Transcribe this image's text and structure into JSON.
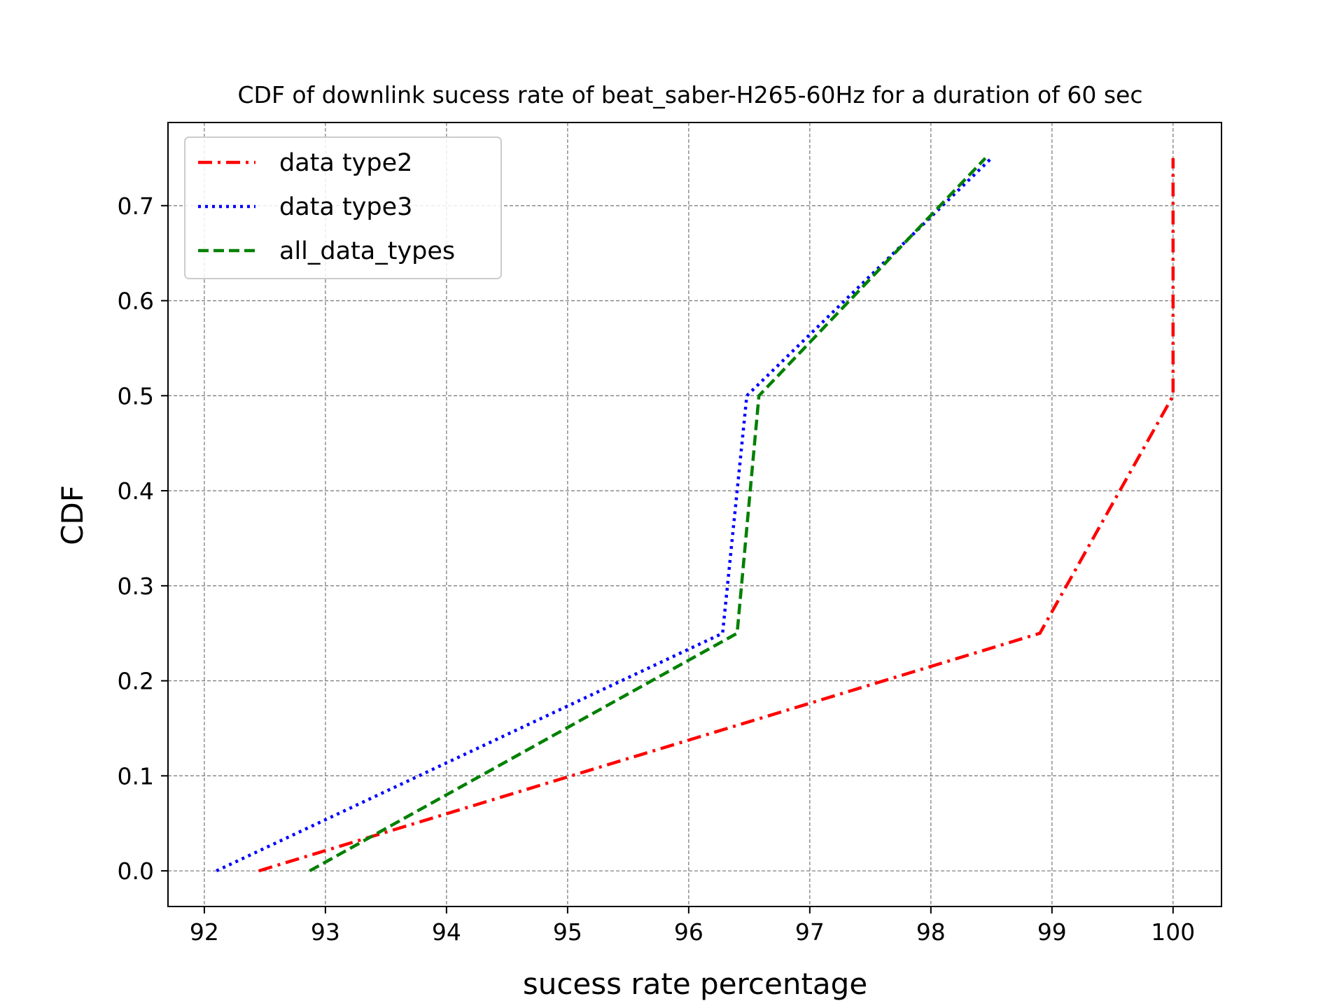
{
  "chart_data": {
    "type": "line",
    "title": "CDF of downlink sucess rate of beat_saber-H265-60Hz for a duration of 60 sec",
    "xlabel": "sucess rate percentage",
    "ylabel": "CDF",
    "xlim": [
      91.7,
      100.4
    ],
    "ylim": [
      -0.0375,
      0.7875
    ],
    "xticks": [
      "92",
      "93",
      "94",
      "95",
      "96",
      "97",
      "98",
      "99",
      "100"
    ],
    "yticks": [
      "0.0",
      "0.1",
      "0.2",
      "0.3",
      "0.4",
      "0.5",
      "0.6",
      "0.7"
    ],
    "grid": true,
    "legend_position": "top-left",
    "series": [
      {
        "name": "data type2",
        "color": "#ff0000",
        "style": "dashdot",
        "x": [
          92.45,
          98.9,
          100.0,
          100.0
        ],
        "y": [
          0.0,
          0.25,
          0.5,
          0.75
        ]
      },
      {
        "name": "data type3",
        "color": "#0000ff",
        "style": "dotted",
        "x": [
          92.1,
          96.28,
          96.48,
          98.5
        ],
        "y": [
          0.0,
          0.25,
          0.5,
          0.75
        ]
      },
      {
        "name": "all_data_types",
        "color": "#008000",
        "style": "dashed",
        "x": [
          92.87,
          96.4,
          96.58,
          98.45
        ],
        "y": [
          0.0,
          0.25,
          0.5,
          0.75
        ]
      }
    ]
  }
}
